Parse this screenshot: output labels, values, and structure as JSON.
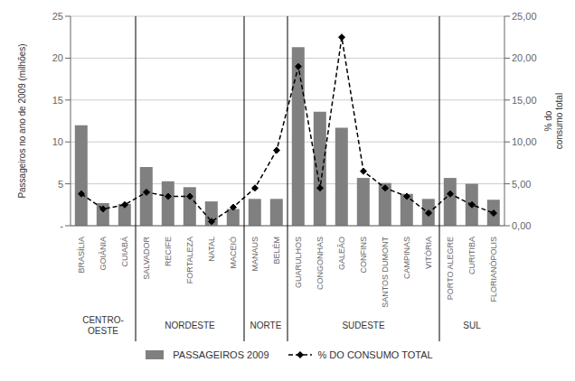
{
  "chart_data": {
    "type": "bar",
    "categories": [
      "BRASÍLIA",
      "GOIÂNIA",
      "CUIABÁ",
      "SALVADOR",
      "RECIFE",
      "FORTALEZA",
      "NATAL",
      "MACEIÓ",
      "MANAUS",
      "BELÉM",
      "GUARULHOS",
      "CONGONHAS",
      "GALEÃO",
      "CONFINS",
      "SANTOS DUMONT",
      "CAMPINAS",
      "VITÓRIA",
      "PORTO ALEGRE",
      "CURITIBA",
      "FLORIANÓPOLIS"
    ],
    "series": [
      {
        "name": "PASSAGEIROS 2009",
        "type": "bar",
        "color": "#808080",
        "values": [
          12.0,
          2.7,
          2.6,
          7.0,
          5.3,
          4.6,
          2.9,
          2.0,
          3.2,
          3.2,
          21.3,
          13.6,
          11.7,
          5.7,
          5.1,
          3.8,
          3.2,
          5.7,
          5.0,
          3.1
        ]
      },
      {
        "name": "% DO CONSUMO TOTAL",
        "type": "line",
        "axis": "y2",
        "color": "#000000",
        "line_style": "dashed",
        "marker": "diamond",
        "values": [
          3.8,
          2.0,
          2.5,
          4.0,
          3.5,
          3.5,
          0.5,
          2.2,
          4.5,
          9.0,
          19.0,
          4.5,
          22.5,
          6.5,
          4.5,
          3.5,
          1.5,
          3.8,
          2.5,
          1.5
        ]
      }
    ],
    "ylabel": "Passageiros no ano de 2009 (milhões)",
    "y2label": "% do\nconsumo total",
    "ylim": [
      0,
      25
    ],
    "yticks": [
      {
        "value": 0,
        "label": "-"
      },
      5,
      10,
      15,
      20,
      25
    ],
    "y2lim": [
      0,
      25
    ],
    "y2ticks": [
      {
        "value": 0,
        "label": "0,00"
      },
      {
        "value": 5,
        "label": "5,00"
      },
      {
        "value": 10,
        "label": "10,00"
      },
      {
        "value": 15,
        "label": "15,00"
      },
      {
        "value": 20,
        "label": "20,00"
      },
      {
        "value": 25,
        "label": "25,00"
      }
    ],
    "grid": true,
    "legend": "bottom",
    "regions": [
      {
        "label": "CENTRO-\nOESTE",
        "first": "BRASÍLIA",
        "last": "CUIABÁ"
      },
      {
        "label": "NORDESTE",
        "first": "SALVADOR",
        "last": "MACEIÓ"
      },
      {
        "label": "NORTE",
        "first": "MANAUS",
        "last": "BELÉM"
      },
      {
        "label": "SUDESTE",
        "first": "GUARULHOS",
        "last": "VITÓRIA"
      },
      {
        "label": "SUL",
        "first": "PORTO ALEGRE",
        "last": "FLORIANÓPOLIS"
      }
    ]
  }
}
